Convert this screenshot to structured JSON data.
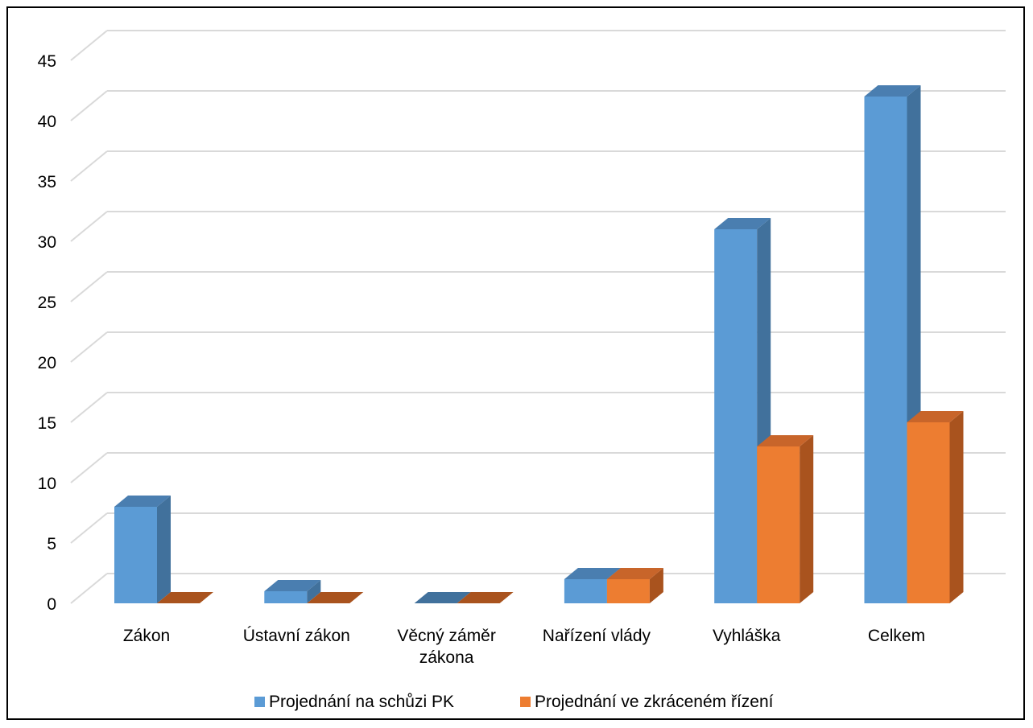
{
  "chart_data": {
    "type": "bar",
    "style": "3d-clustered-column",
    "categories": [
      [
        "Zákon"
      ],
      [
        "Ústavní zákon"
      ],
      [
        "Věcný záměr",
        "zákona"
      ],
      [
        "Nařízení vlády"
      ],
      [
        "Vyhláška"
      ],
      [
        "Celkem"
      ]
    ],
    "series": [
      {
        "name": "Projednání na schůzi PK",
        "values": [
          8,
          1,
          0,
          2,
          31,
          42
        ],
        "color": "#5B9BD5",
        "side_color": "#41719C",
        "top_color": "#4A7EB0"
      },
      {
        "name": "Projednání ve zkráceném řízení",
        "values": [
          0,
          0,
          0,
          2,
          13,
          15
        ],
        "color": "#ED7D31",
        "side_color": "#A9531E",
        "top_color": "#C8652A"
      }
    ],
    "ylim": [
      0,
      45
    ],
    "yticks": [
      0,
      5,
      10,
      15,
      20,
      25,
      30,
      35,
      40,
      45
    ],
    "grid": true,
    "legend_position": "bottom",
    "gridline_color": "#D9D9D9"
  }
}
